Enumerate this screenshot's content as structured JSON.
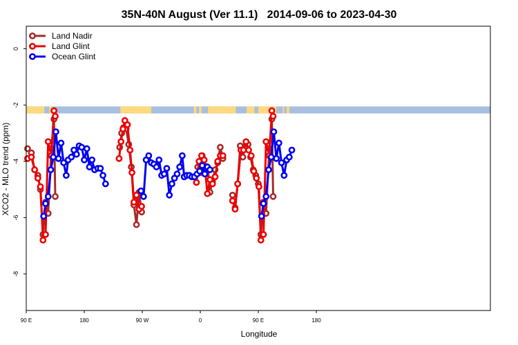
{
  "chart_data": {
    "type": "line",
    "title": "35N-40N August (Ver 11.1)   2014-09-06 to 2023-04-30",
    "xlabel": "Longitude",
    "ylabel": "XCO2 - MLO trend (ppm)",
    "xlim": [
      90,
      810
    ],
    "ylim": [
      -9.3,
      0.8
    ],
    "x_ticks": [
      {
        "value": 90,
        "label": "90 E"
      },
      {
        "value": 180,
        "label": "180"
      },
      {
        "value": 270,
        "label": "90 W"
      },
      {
        "value": 360,
        "label": "0"
      },
      {
        "value": 450,
        "label": "90 E"
      },
      {
        "value": 540,
        "label": "180"
      }
    ],
    "y_ticks": [
      {
        "value": 0,
        "label": "0"
      },
      {
        "value": -2,
        "label": "-2"
      },
      {
        "value": -4,
        "label": "-4"
      },
      {
        "value": -6,
        "label": "-6"
      },
      {
        "value": -8,
        "label": "-8"
      }
    ],
    "legend_position": "top-left",
    "land_ocean_band": {
      "y_top": -2.05,
      "y_bottom": -2.3,
      "land_color": "#FFD980",
      "ocean_color": "#A7C0DF",
      "land_ranges": [
        [
          90,
          118
        ],
        [
          126,
          130
        ],
        [
          236,
          284
        ],
        [
          350,
          354
        ],
        [
          358,
          362
        ],
        [
          372,
          415
        ],
        [
          432,
          444
        ],
        [
          450,
          478
        ],
        [
          488,
          490
        ],
        [
          494,
          498
        ]
      ]
    },
    "series": [
      {
        "name": "Land Nadir",
        "color": "#A52A2A",
        "segments": [
          [
            [
              92,
              -3.55
            ],
            [
              98,
              -3.7
            ],
            [
              103,
              -4.3
            ],
            [
              108,
              -4.5
            ],
            [
              112,
              -5.0
            ],
            [
              116,
              -6.6
            ],
            [
              120,
              -5.45
            ],
            [
              124,
              -5.85
            ],
            [
              129,
              -3.55
            ],
            [
              133,
              -2.5
            ],
            [
              135,
              -5.25
            ]
          ],
          [
            [
              235,
              -3.5
            ],
            [
              238,
              -3.0
            ],
            [
              241,
              -2.8
            ],
            [
              245,
              -2.85
            ],
            [
              249,
              -3.4
            ],
            [
              253,
              -4.2
            ],
            [
              257,
              -5.55
            ],
            [
              261,
              -6.25
            ],
            [
              265,
              -5.1
            ],
            [
              269,
              -5.8
            ]
          ],
          [
            [
              356,
              -4.2
            ],
            [
              360,
              -4.4
            ],
            [
              363,
              -3.8
            ],
            [
              366,
              -4.15
            ],
            [
              369,
              -4.45
            ],
            [
              372,
              -4.3
            ],
            [
              375,
              -5.1
            ],
            [
              379,
              -4.7
            ],
            [
              383,
              -4.3
            ],
            [
              387,
              -4.05
            ],
            [
              391,
              -3.5
            ],
            [
              395,
              -3.9
            ]
          ],
          [
            [
              410,
              -5.2
            ],
            [
              414,
              -5.65
            ],
            [
              418,
              -4.8
            ],
            [
              422,
              -3.45
            ],
            [
              426,
              -3.85
            ],
            [
              430,
              -3.45
            ],
            [
              434,
              -3.4
            ],
            [
              438,
              -3.85
            ],
            [
              442,
              -4.3
            ],
            [
              446,
              -4.5
            ],
            [
              450,
              -4.8
            ],
            [
              454,
              -6.6
            ],
            [
              458,
              -5.45
            ],
            [
              462,
              -5.85
            ],
            [
              467,
              -3.55
            ],
            [
              471,
              -2.5
            ],
            [
              473,
              -5.25
            ]
          ]
        ]
      },
      {
        "name": "Land Glint",
        "color": "#EE0000",
        "segments": [
          [
            [
              92,
              -3.9
            ],
            [
              98,
              -3.85
            ],
            [
              103,
              -4.3
            ],
            [
              108,
              -4.6
            ],
            [
              112,
              -4.9
            ],
            [
              116,
              -6.8
            ],
            [
              120,
              -6.6
            ],
            [
              124,
              -3.3
            ],
            [
              129,
              -3.8
            ],
            [
              133,
              -2.2
            ],
            [
              135,
              -2.4
            ]
          ],
          [
            [
              234,
              -3.9
            ],
            [
              237,
              -3.3
            ],
            [
              240,
              -2.85
            ],
            [
              243,
              -2.55
            ],
            [
              247,
              -2.7
            ],
            [
              251,
              -3.6
            ],
            [
              254,
              -4.4
            ],
            [
              257,
              -5.45
            ],
            [
              261,
              -5.2
            ],
            [
              265,
              -5.7
            ],
            [
              269,
              -5.6
            ]
          ],
          [
            [
              354,
              -4.75
            ],
            [
              358,
              -4.0
            ],
            [
              362,
              -3.8
            ],
            [
              366,
              -3.95
            ],
            [
              371,
              -5.15
            ],
            [
              375,
              -4.65
            ],
            [
              379,
              -4.8
            ],
            [
              383,
              -4.55
            ],
            [
              387,
              -4.0
            ],
            [
              391,
              -3.8
            ],
            [
              395,
              -3.8
            ]
          ],
          [
            [
              410,
              -5.4
            ],
            [
              414,
              -5.7
            ],
            [
              418,
              -4.8
            ],
            [
              423,
              -3.6
            ],
            [
              427,
              -3.6
            ],
            [
              431,
              -3.3
            ],
            [
              435,
              -3.6
            ],
            [
              439,
              -3.8
            ],
            [
              443,
              -4.35
            ],
            [
              447,
              -4.6
            ],
            [
              451,
              -4.9
            ],
            [
              454,
              -6.8
            ],
            [
              458,
              -6.6
            ],
            [
              462,
              -3.3
            ],
            [
              467,
              -3.8
            ],
            [
              471,
              -2.2
            ],
            [
              473,
              -2.4
            ]
          ]
        ]
      },
      {
        "name": "Ocean Glint",
        "color": "#0000EE",
        "segments": [
          [
            [
              117,
              -5.95
            ],
            [
              120,
              -5.5
            ],
            [
              124,
              -5.25
            ],
            [
              128,
              -4.3
            ],
            [
              132,
              -3.85
            ],
            [
              136,
              -2.95
            ],
            [
              140,
              -3.9
            ],
            [
              144,
              -3.35
            ],
            [
              148,
              -4.05
            ],
            [
              152,
              -4.5
            ],
            [
              155,
              -3.95
            ],
            [
              160,
              -3.85
            ],
            [
              164,
              -3.6
            ],
            [
              168,
              -3.75
            ],
            [
              172,
              -3.45
            ],
            [
              176,
              -3.5
            ],
            [
              180,
              -3.95
            ],
            [
              184,
              -3.55
            ],
            [
              188,
              -4.2
            ],
            [
              192,
              -3.95
            ],
            [
              196,
              -4.3
            ],
            [
              201,
              -4.25
            ],
            [
              205,
              -4.25
            ],
            [
              209,
              -4.5
            ],
            [
              213,
              -4.8
            ]
          ],
          [
            [
              268,
              -5.05
            ],
            [
              272,
              -5.25
            ],
            [
              276,
              -3.95
            ],
            [
              280,
              -3.8
            ],
            [
              284,
              -4.05
            ],
            [
              288,
              -4.1
            ],
            [
              292,
              -4.2
            ],
            [
              296,
              -3.95
            ],
            [
              300,
              -4.5
            ],
            [
              304,
              -4.45
            ],
            [
              308,
              -4.25
            ],
            [
              312,
              -5.2
            ],
            [
              316,
              -4.8
            ],
            [
              320,
              -4.6
            ],
            [
              324,
              -4.45
            ],
            [
              328,
              -4.2
            ],
            [
              332,
              -3.8
            ],
            [
              335,
              -4.55
            ],
            [
              339,
              -4.5
            ],
            [
              343,
              -4.5
            ],
            [
              347,
              -4.55
            ],
            [
              351,
              -4.55
            ],
            [
              355,
              -4.45
            ],
            [
              359,
              -4.35
            ],
            [
              363,
              -4.15
            ],
            [
              367,
              -4.45
            ],
            [
              371,
              -4.2
            ],
            [
              375,
              -4.3
            ]
          ],
          [
            [
              455,
              -5.95
            ],
            [
              458,
              -5.5
            ],
            [
              462,
              -5.25
            ],
            [
              466,
              -4.3
            ],
            [
              470,
              -3.85
            ],
            [
              474,
              -2.95
            ],
            [
              478,
              -3.9
            ],
            [
              482,
              -3.35
            ],
            [
              486,
              -4.05
            ],
            [
              490,
              -4.5
            ],
            [
              494,
              -3.95
            ],
            [
              498,
              -3.85
            ],
            [
              502,
              -3.6
            ]
          ]
        ]
      }
    ]
  }
}
